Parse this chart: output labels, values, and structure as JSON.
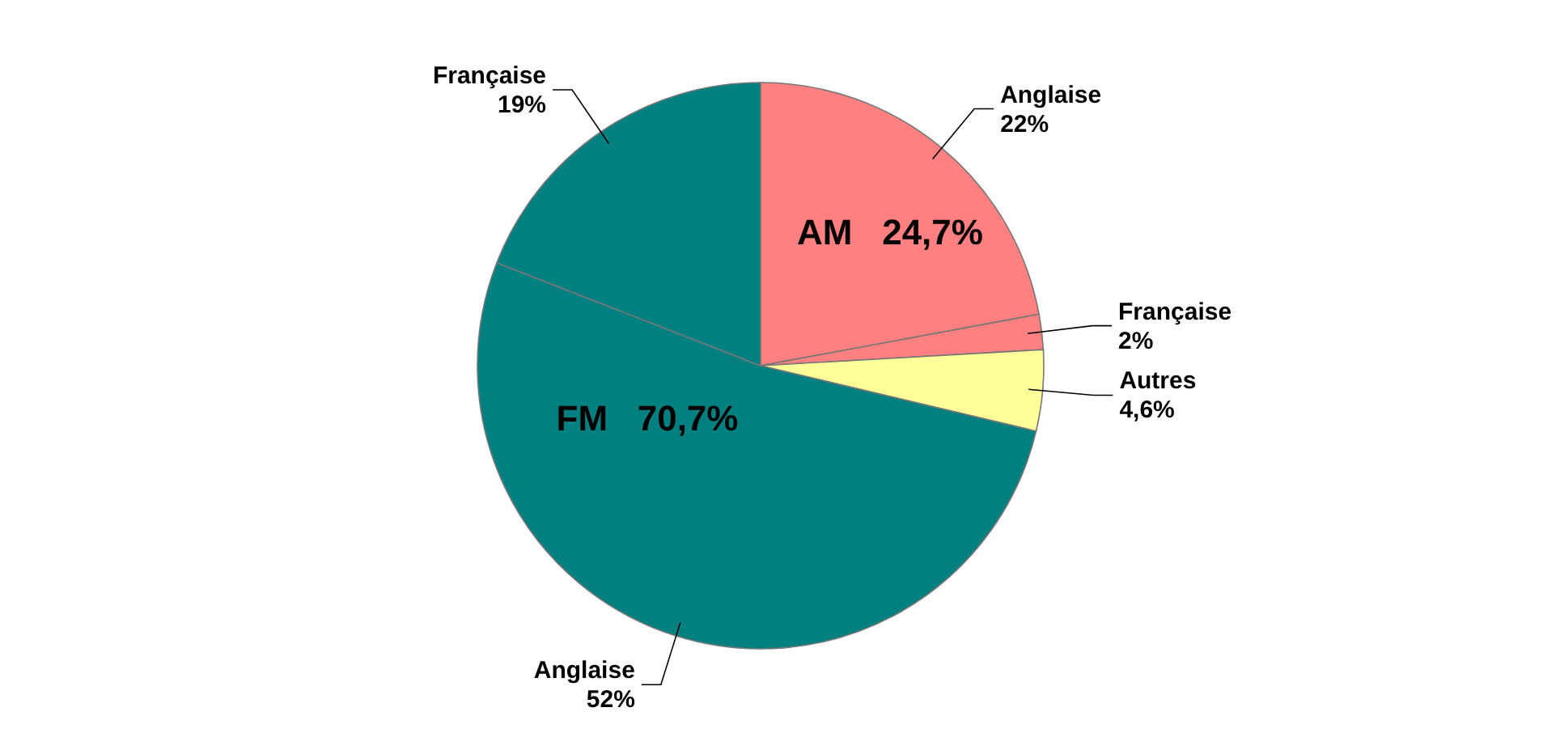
{
  "chart_data": {
    "type": "pie",
    "categories": [
      "Anglaise",
      "Française",
      "Autres",
      "Anglaise",
      "Française"
    ],
    "values": [
      22,
      2,
      4.6,
      52,
      19
    ],
    "value_labels": [
      "22%",
      "2%",
      "4,6%",
      "52%",
      "19%"
    ],
    "colors": [
      "#ff8080",
      "#ff8080",
      "#ffff99",
      "#008080",
      "#008080"
    ],
    "annotations": [
      "AM   24,7%",
      "FM   70,7%"
    ]
  }
}
